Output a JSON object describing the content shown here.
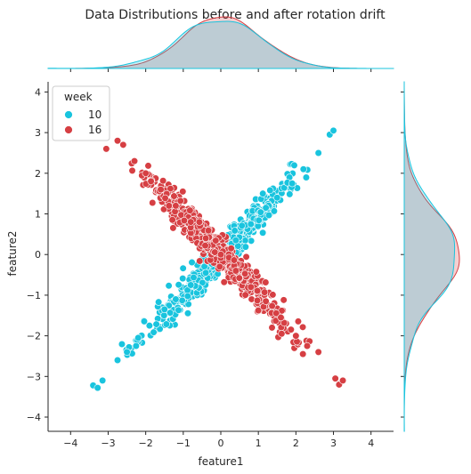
{
  "chart_data": {
    "type": "scatter",
    "title": "Data Distributions before and after rotation drift",
    "xlabel": "feature1",
    "ylabel": "feature2",
    "xlim": [
      -4.6,
      4.6
    ],
    "ylim": [
      -4.35,
      4.25
    ],
    "xticks": [
      -4,
      -3,
      -2,
      -1,
      0,
      1,
      2,
      3,
      4
    ],
    "yticks": [
      -4,
      -3,
      -2,
      -1,
      0,
      1,
      2,
      3,
      4
    ],
    "grid": false,
    "legend": {
      "title": "week",
      "placement": "top-left"
    },
    "marginals": {
      "top": "kde",
      "right": "kde"
    },
    "series": [
      {
        "name": "10",
        "color": "#19c4de",
        "points": [
          [
            -3.4,
            -3.22
          ],
          [
            -3.28,
            -3.28
          ],
          [
            -3.15,
            -3.1
          ],
          [
            -2.75,
            -2.6
          ],
          [
            -2.5,
            -2.4
          ],
          [
            -2.2,
            -2.05
          ],
          [
            -1.9,
            -1.75
          ],
          [
            -1.5,
            -1.35
          ],
          [
            -1.2,
            -1.1
          ],
          [
            -0.8,
            -0.75
          ],
          [
            -0.4,
            -0.45
          ],
          [
            0.0,
            0.05
          ],
          [
            0.4,
            0.35
          ],
          [
            0.8,
            0.75
          ],
          [
            1.2,
            1.15
          ],
          [
            1.5,
            1.4
          ],
          [
            1.9,
            1.75
          ],
          [
            2.2,
            2.1
          ],
          [
            2.6,
            2.5
          ],
          [
            2.9,
            2.95
          ],
          [
            3.0,
            3.05
          ]
        ]
      },
      {
        "name": "16",
        "color": "#d63f43",
        "points": [
          [
            -3.05,
            2.6
          ],
          [
            -2.75,
            2.8
          ],
          [
            -2.6,
            2.7
          ],
          [
            -2.3,
            2.3
          ],
          [
            -2.0,
            2.0
          ],
          [
            -1.6,
            1.6
          ],
          [
            -1.2,
            1.2
          ],
          [
            -0.8,
            0.8
          ],
          [
            -0.4,
            0.4
          ],
          [
            0.0,
            0.0
          ],
          [
            0.4,
            -0.4
          ],
          [
            0.8,
            -0.8
          ],
          [
            1.2,
            -1.15
          ],
          [
            1.6,
            -1.55
          ],
          [
            2.0,
            -2.0
          ],
          [
            2.3,
            -2.25
          ],
          [
            2.6,
            -2.4
          ],
          [
            3.05,
            -3.05
          ],
          [
            3.15,
            -3.2
          ],
          [
            3.25,
            -3.1
          ]
        ]
      }
    ]
  }
}
